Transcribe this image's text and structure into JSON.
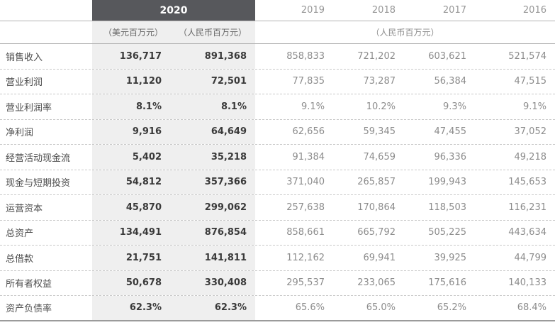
{
  "header": {
    "years": [
      {
        "label": "2020"
      },
      {
        "label": "2019"
      },
      {
        "label": "2018"
      },
      {
        "label": "2017"
      },
      {
        "label": "2016"
      }
    ],
    "subheader": {
      "usd_unit": "（美元百万元）",
      "rmb_unit": "（人民币百万元）",
      "rmb_span_unit": "（人民币百万元）"
    }
  },
  "colors": {
    "header_bar": "#57585c",
    "highlight_column_bg": "#efefef",
    "value_gray": "#8c8c8c"
  },
  "table": {
    "rows": [
      {
        "label": "销售收入",
        "values": [
          "136,717",
          "891,368",
          "858,833",
          "721,202",
          "603,621",
          "521,574"
        ]
      },
      {
        "label": "营业利润",
        "values": [
          "11,120",
          "72,501",
          "77,835",
          "73,287",
          "56,384",
          "47,515"
        ]
      },
      {
        "label": "营业利润率",
        "values": [
          "8.1%",
          "8.1%",
          "9.1%",
          "10.2%",
          "9.3%",
          "9.1%"
        ]
      },
      {
        "label": "净利润",
        "values": [
          "9,916",
          "64,649",
          "62,656",
          "59,345",
          "47,455",
          "37,052"
        ]
      },
      {
        "label": "经营活动现金流",
        "values": [
          "5,402",
          "35,218",
          "91,384",
          "74,659",
          "96,336",
          "49,218"
        ]
      },
      {
        "label": "现金与短期投资",
        "values": [
          "54,812",
          "357,366",
          "371,040",
          "265,857",
          "199,943",
          "145,653"
        ]
      },
      {
        "label": "运营资本",
        "values": [
          "45,870",
          "299,062",
          "257,638",
          "170,864",
          "118,503",
          "116,231"
        ]
      },
      {
        "label": "总资产",
        "values": [
          "134,491",
          "876,854",
          "858,661",
          "665,792",
          "505,225",
          "443,634"
        ]
      },
      {
        "label": "总借款",
        "values": [
          "21,751",
          "141,811",
          "112,162",
          "69,941",
          "39,925",
          "44,799"
        ]
      },
      {
        "label": "所有者权益",
        "values": [
          "50,678",
          "330,408",
          "295,537",
          "233,065",
          "175,616",
          "140,133"
        ]
      },
      {
        "label": "资产负债率",
        "values": [
          "62.3%",
          "62.3%",
          "65.6%",
          "65.0%",
          "65.2%",
          "68.4%"
        ]
      }
    ]
  }
}
